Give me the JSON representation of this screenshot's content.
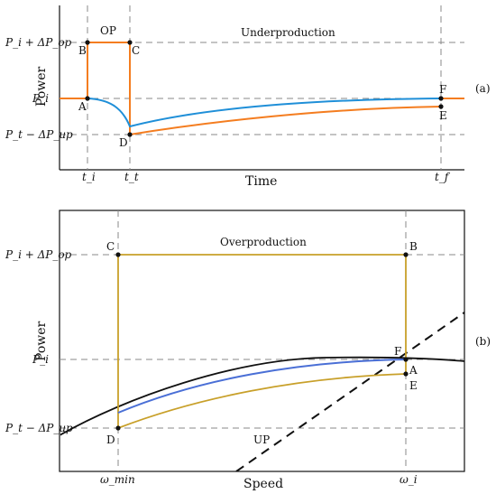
{
  "panel_a": {
    "ylabel": "Power",
    "xlabel": "Time",
    "tag": "(a)",
    "region_label": "Underproduction",
    "op_label": "OP",
    "ytick_top": "P_i + ΔP_op",
    "ytick_mid": "P_i",
    "ytick_bot": "P_t − ΔP_up",
    "xtick_1": "t_i",
    "xtick_2": "t_t",
    "xtick_3": "t_f",
    "point_labels": {
      "A": "A",
      "B": "B",
      "C": "C",
      "D": "D",
      "E": "E",
      "F": "F"
    },
    "colors": {
      "orange": "#f47d20",
      "blue": "#1f8fd8"
    }
  },
  "panel_b": {
    "ylabel": "Power",
    "xlabel": "Speed",
    "tag": "(b)",
    "region_label": "Overproduction",
    "up_label": "UP",
    "ytick_top": "P_i + ΔP_op",
    "ytick_mid": "P_i",
    "ytick_bot": "P_t − ΔP_up",
    "xtick_1": "ω_min",
    "xtick_2": "ω_i",
    "point_labels": {
      "A": "A",
      "B": "B",
      "C": "C",
      "D": "D",
      "E": "E",
      "F": "F"
    },
    "colors": {
      "gold": "#c8a02a",
      "blue": "#4a6fd6",
      "black": "#111111"
    }
  }
}
